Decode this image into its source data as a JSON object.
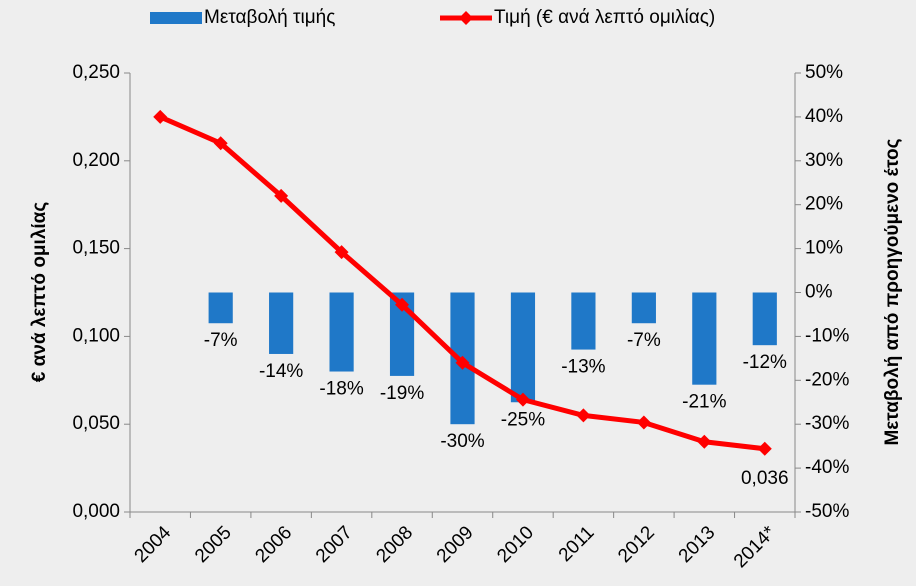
{
  "chart_data": {
    "type": "combo",
    "categories": [
      "2004",
      "2005",
      "2006",
      "2007",
      "2008",
      "2009",
      "2010",
      "2011",
      "2012",
      "2013",
      "2014*"
    ],
    "series": [
      {
        "name": "Μεταβολή τιμής",
        "type": "bar",
        "axis": "y2",
        "color": "#1f78c8",
        "values": [
          null,
          -7,
          -14,
          -18,
          -19,
          -30,
          -25,
          -13,
          -7,
          -21,
          -12
        ],
        "value_labels": [
          null,
          "-7%",
          "-14%",
          "-18%",
          "-19%",
          "-30%",
          "-25%",
          "-13%",
          "-7%",
          "-21%",
          "-12%"
        ]
      },
      {
        "name": "Τιμή (€ ανά λεπτό ομιλίας)",
        "type": "line",
        "color": "#ff0000",
        "values": [
          0.225,
          0.21,
          0.18,
          0.148,
          0.118,
          0.085,
          0.064,
          0.055,
          0.051,
          0.04,
          0.036
        ],
        "value_labels": [
          null,
          null,
          null,
          null,
          null,
          null,
          null,
          null,
          null,
          null,
          "0,036"
        ]
      }
    ],
    "y_label": "€ ανά λεπτό ομιλίας",
    "y2_label": "Μεταβολή από προηγούμενο έτος",
    "ylim": [
      0,
      0.25
    ],
    "yticks": [
      {
        "value": 0,
        "label": "0,000"
      },
      {
        "value": 0.05,
        "label": "0,050"
      },
      {
        "value": 0.1,
        "label": "0,100"
      },
      {
        "value": 0.15,
        "label": "0,150"
      },
      {
        "value": 0.2,
        "label": "0,200"
      },
      {
        "value": 0.25,
        "label": "0,250"
      }
    ],
    "y2lim": [
      -50,
      50
    ],
    "y2ticks": [
      {
        "value": -50,
        "label": "-50%"
      },
      {
        "value": -40,
        "label": "-40%"
      },
      {
        "value": -30,
        "label": "-30%"
      },
      {
        "value": -20,
        "label": "-20%"
      },
      {
        "value": -10,
        "label": "-10%"
      },
      {
        "value": 0,
        "label": "0%"
      },
      {
        "value": 10,
        "label": "10%"
      },
      {
        "value": 20,
        "label": "20%"
      },
      {
        "value": 30,
        "label": "30%"
      },
      {
        "value": 40,
        "label": "40%"
      },
      {
        "value": 50,
        "label": "50%"
      }
    ],
    "legend": "top"
  }
}
